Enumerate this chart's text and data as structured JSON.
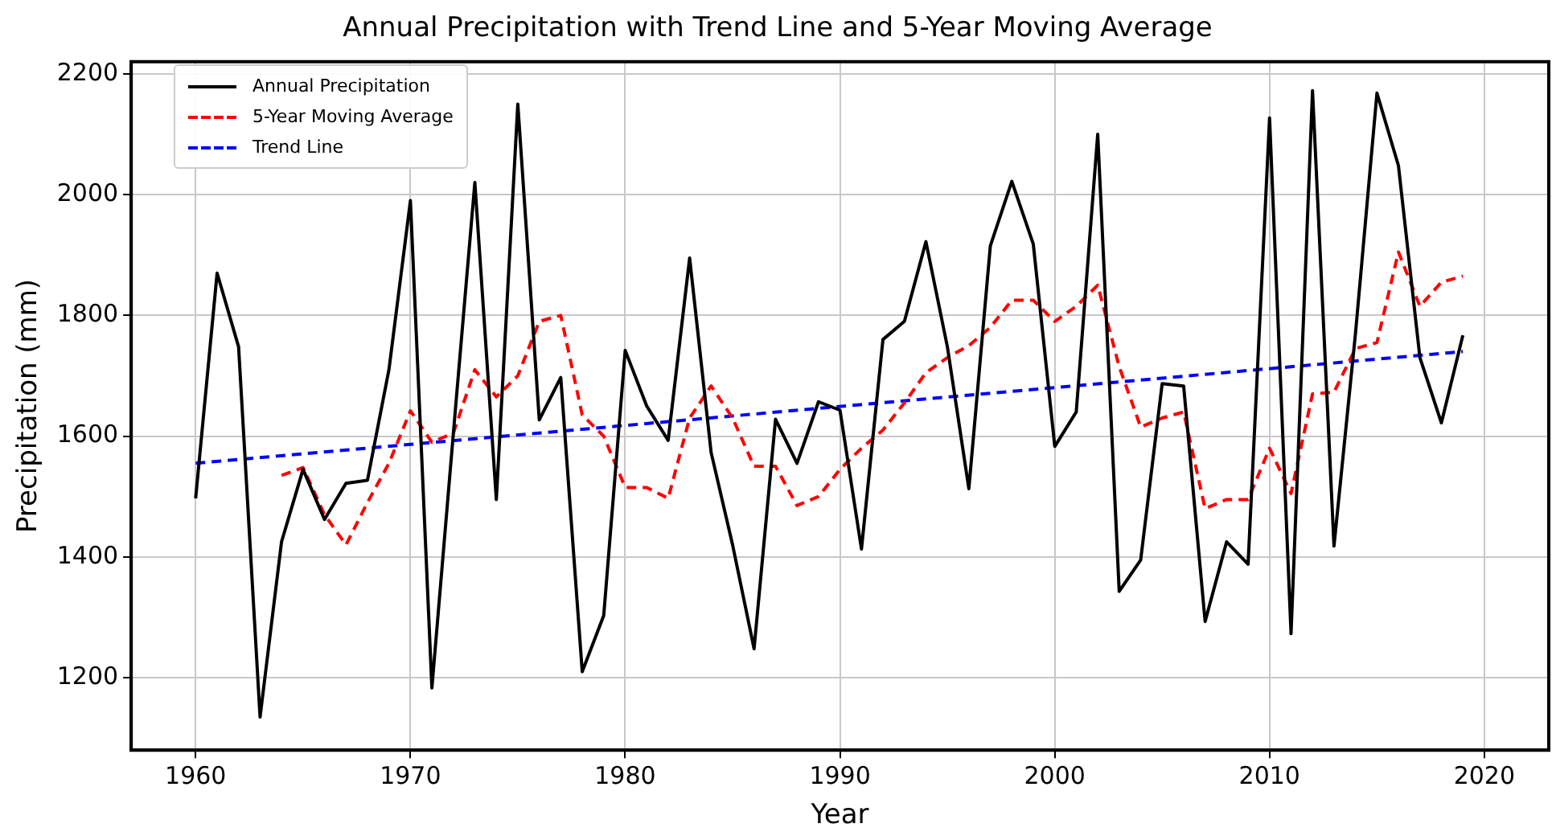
{
  "chart_data": {
    "type": "line",
    "title": "Annual Precipitation with Trend Line and 5-Year Moving Average",
    "xlabel": "Year",
    "ylabel": "Precipitation (mm)",
    "xlim": [
      1957,
      2023
    ],
    "xticks": [
      1960,
      1970,
      1980,
      1990,
      2000,
      2010,
      2020
    ],
    "ylim": [
      1080,
      2220
    ],
    "yticks": [
      1200,
      1400,
      1600,
      1800,
      2000,
      2200
    ],
    "grid": true,
    "legend": "top left",
    "marker": "none",
    "series": [
      {
        "name": "Annual Precipitation",
        "color": "#000000",
        "line_style": "solid",
        "x": [
          1960,
          1961,
          1962,
          1963,
          1964,
          1965,
          1966,
          1967,
          1968,
          1969,
          1970,
          1971,
          1972,
          1973,
          1974,
          1975,
          1976,
          1977,
          1978,
          1979,
          1980,
          1981,
          1982,
          1983,
          1984,
          1985,
          1986,
          1987,
          1988,
          1989,
          1990,
          1991,
          1992,
          1993,
          1994,
          1995,
          1996,
          1997,
          1998,
          1999,
          2000,
          2001,
          2002,
          2003,
          2004,
          2005,
          2006,
          2007,
          2008,
          2009,
          2010,
          2011,
          2012,
          2013,
          2014,
          2015,
          2016,
          2017,
          2018,
          2019
        ],
        "values": [
          1497,
          1870,
          1748,
          1135,
          1425,
          1545,
          1462,
          1522,
          1527,
          1710,
          1990,
          1183,
          1605,
          2020,
          1495,
          2150,
          1627,
          1697,
          1210,
          1303,
          1742,
          1650,
          1593,
          1895,
          1573,
          1420,
          1248,
          1628,
          1555,
          1657,
          1643,
          1413,
          1760,
          1790,
          1922,
          1748,
          1513,
          1915,
          2022,
          1918,
          1583,
          1640,
          2100,
          1343,
          1395,
          1687,
          1683,
          1293,
          1425,
          1388,
          2127,
          1273,
          2172,
          1418,
          1770,
          2168,
          2048,
          1730,
          1622,
          1767
        ]
      },
      {
        "name": "5-Year Moving Average",
        "color": "#ff0000",
        "line_style": "dashed",
        "x": [
          1964,
          1965,
          1966,
          1967,
          1968,
          1969,
          1970,
          1971,
          1972,
          1973,
          1974,
          1975,
          1976,
          1977,
          1978,
          1979,
          1980,
          1981,
          1982,
          1983,
          1984,
          1985,
          1986,
          1987,
          1988,
          1989,
          1990,
          1991,
          1992,
          1993,
          1994,
          1995,
          1996,
          1997,
          1998,
          1999,
          2000,
          2001,
          2002,
          2003,
          2004,
          2005,
          2006,
          2007,
          2008,
          2009,
          2010,
          2011,
          2012,
          2013,
          2014,
          2015,
          2016,
          2017,
          2018,
          2019
        ],
        "values": [
          1535,
          1548,
          1470,
          1420,
          1490,
          1555,
          1642,
          1590,
          1605,
          1710,
          1665,
          1700,
          1790,
          1800,
          1635,
          1600,
          1515,
          1515,
          1497,
          1630,
          1683,
          1630,
          1550,
          1550,
          1485,
          1500,
          1545,
          1580,
          1610,
          1655,
          1705,
          1730,
          1750,
          1780,
          1825,
          1825,
          1790,
          1815,
          1850,
          1715,
          1615,
          1630,
          1640,
          1480,
          1495,
          1495,
          1580,
          1505,
          1670,
          1673,
          1745,
          1755,
          1905,
          1815,
          1855,
          1865
        ]
      },
      {
        "name": "Trend Line",
        "color": "#0000ff",
        "line_style": "dashed",
        "x": [
          1960,
          2019
        ],
        "values": [
          1555,
          1740
        ]
      }
    ]
  }
}
